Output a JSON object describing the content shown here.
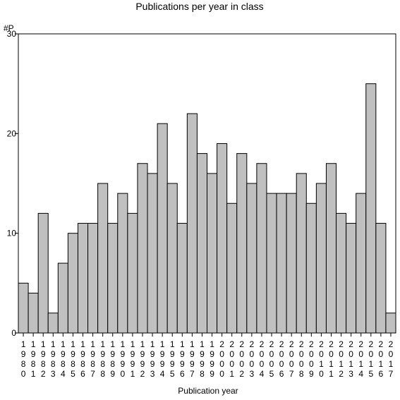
{
  "chart_data": {
    "type": "bar",
    "title": "Publications per year in class",
    "ylabel": "#P",
    "xlabel": "Publication year",
    "ylim": [
      0,
      30
    ],
    "yticks": [
      0,
      10,
      20,
      30
    ],
    "grid": false,
    "bar_color": "#c0c0c0",
    "edge_color": "#000000",
    "categories": [
      "1980",
      "1981",
      "1982",
      "1983",
      "1984",
      "1985",
      "1986",
      "1987",
      "1988",
      "1989",
      "1990",
      "1991",
      "1992",
      "1993",
      "1994",
      "1995",
      "1996",
      "1997",
      "1998",
      "1999",
      "2000",
      "2001",
      "2002",
      "2003",
      "2004",
      "2005",
      "2006",
      "2007",
      "2008",
      "2009",
      "2010",
      "2011",
      "2012",
      "2013",
      "2014",
      "2015",
      "2016",
      "2017"
    ],
    "values": [
      5,
      4,
      12,
      2,
      7,
      10,
      11,
      11,
      15,
      11,
      14,
      12,
      17,
      16,
      21,
      15,
      11,
      22,
      18,
      16,
      19,
      13,
      18,
      15,
      17,
      14,
      14,
      14,
      16,
      13,
      15,
      17,
      12,
      11,
      14,
      25,
      11,
      2
    ]
  }
}
